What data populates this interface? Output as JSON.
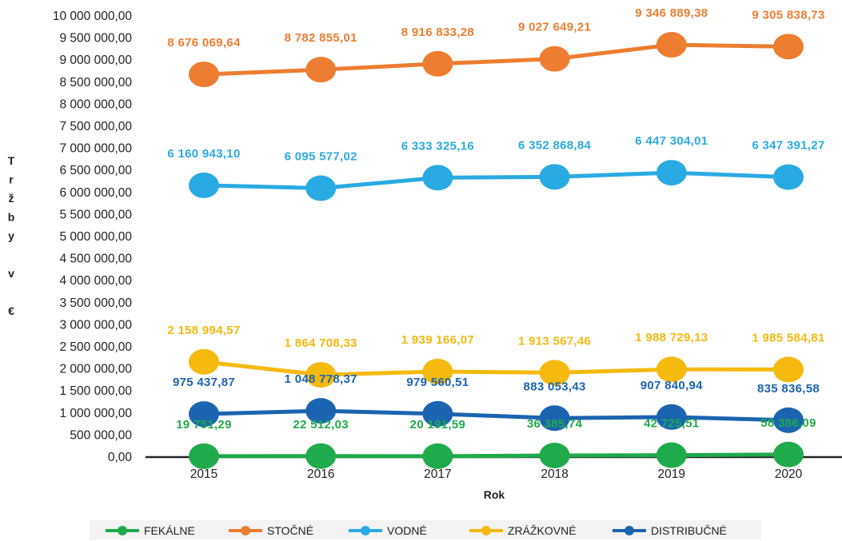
{
  "chart_data": {
    "type": "line",
    "title": "",
    "xlabel": "Rok",
    "ylabel": "T r ž b y v €",
    "ylabel_chars": [
      "T",
      "r",
      "ž",
      "b",
      "y",
      "",
      "v",
      "",
      "€"
    ],
    "categories": [
      "2015",
      "2016",
      "2017",
      "2018",
      "2019",
      "2020"
    ],
    "ylim": [
      0,
      10000000
    ],
    "ytick_step": 500000,
    "yticks": [
      "0,00",
      "500 000,00",
      "1 000 000,00",
      "1 500 000,00",
      "2 000 000,00",
      "2 500 000,00",
      "3 000 000,00",
      "3 500 000,00",
      "4 000 000,00",
      "4 500 000,00",
      "5 000 000,00",
      "5 500 000,00",
      "6 000 000,00",
      "6 500 000,00",
      "7 000 000,00",
      "7 500 000,00",
      "8 000 000,00",
      "8 500 000,00",
      "9 000 000,00",
      "9 500 000,00",
      "10 000 000,00"
    ],
    "grid": false,
    "legend_position": "bottom",
    "series": [
      {
        "name": "FEKÁLNE",
        "color": "#1faa4b",
        "values": [
          19751.29,
          22512.03,
          20191.59,
          36385.74,
          42725.51,
          58386.09
        ],
        "labels": [
          "19 751,29",
          "22 512,03",
          "20 191,59",
          "36 385,74",
          "42 725,51",
          "58 386,09"
        ]
      },
      {
        "name": "STOČNÉ",
        "color": "#ed7d31",
        "values": [
          8676069.64,
          8782855.01,
          8916833.28,
          9027649.21,
          9346889.38,
          9305838.73
        ],
        "labels": [
          "8 676 069,64",
          "8 782 855,01",
          "8 916 833,28",
          "9 027 649,21",
          "9 346 889,38",
          "9 305 838,73"
        ]
      },
      {
        "name": "VODNÉ",
        "color": "#2aaae2",
        "values": [
          6160943.1,
          6095577.02,
          6333325.16,
          6352868.84,
          6447304.01,
          6347391.27
        ],
        "labels": [
          "6 160 943,10",
          "6 095 577,02",
          "6 333 325,16",
          "6 352 868,84",
          "6 447 304,01",
          "6 347 391,27"
        ]
      },
      {
        "name": "ZRÁŽKOVNÉ",
        "color": "#f5b90f",
        "values": [
          2158994.57,
          1864708.33,
          1939166.07,
          1913567.46,
          1988729.13,
          1985584.81
        ],
        "labels": [
          "2 158 994,57",
          "1 864 708,33",
          "1 939 166,07",
          "1 913 567,46",
          "1 988 729,13",
          "1 985 584,81"
        ]
      },
      {
        "name": "DISTRIBUČNÉ",
        "color": "#1a64b0",
        "values": [
          975437.87,
          1048778.37,
          979560.51,
          883053.43,
          907840.94,
          835836.58
        ],
        "labels": [
          "975 437,87",
          "1 048 778,37",
          "979 560,51",
          "883 053,43",
          "907 840,94",
          "835 836,58"
        ]
      }
    ]
  }
}
